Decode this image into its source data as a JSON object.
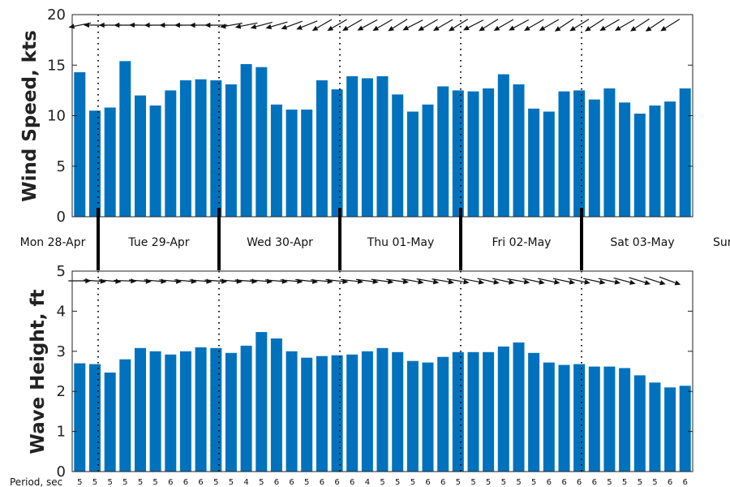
{
  "chart_data": [
    {
      "type": "bar",
      "ylabel": "Wind Speed, kts",
      "ylim": [
        0,
        20
      ],
      "yticks": [
        0,
        5,
        10,
        15,
        20
      ],
      "color": "#0072bd",
      "values": [
        14.3,
        10.5,
        10.8,
        15.4,
        12.0,
        11.0,
        12.5,
        13.5,
        13.6,
        13.5,
        13.1,
        15.1,
        14.8,
        11.1,
        10.6,
        10.6,
        13.5,
        12.6,
        13.9,
        13.7,
        13.9,
        12.1,
        10.4,
        11.1,
        12.9,
        12.5,
        12.4,
        12.7,
        14.1,
        13.1,
        10.7,
        10.4,
        12.4,
        12.5,
        11.6,
        12.7,
        11.3,
        10.2,
        11.0,
        11.4,
        12.7
      ],
      "direction_arrows": [
        169,
        181,
        180,
        180,
        181,
        180,
        180,
        180,
        180,
        180,
        170,
        169,
        165,
        164,
        160,
        158,
        150,
        150,
        150,
        152,
        150,
        148,
        153,
        150,
        150,
        148,
        153,
        148,
        150,
        152,
        150,
        150,
        146,
        148,
        147,
        150,
        150,
        147,
        146,
        148,
        147
      ]
    },
    {
      "type": "bar",
      "ylabel": "Wave Height, ft",
      "ylim": [
        0,
        5
      ],
      "yticks": [
        0,
        1,
        2,
        3,
        4,
        5
      ],
      "color": "#0072bd",
      "values": [
        2.7,
        2.68,
        2.47,
        2.8,
        3.08,
        3.0,
        2.92,
        3.0,
        3.1,
        3.08,
        2.96,
        3.14,
        3.48,
        3.32,
        3.0,
        2.84,
        2.88,
        2.9,
        2.92,
        3.0,
        3.08,
        2.98,
        2.76,
        2.72,
        2.86,
        2.98,
        2.98,
        2.98,
        3.12,
        3.22,
        2.96,
        2.72,
        2.66,
        2.68,
        2.62,
        2.62,
        2.58,
        2.4,
        2.22,
        2.1,
        2.14
      ],
      "direction_arrows": [
        0,
        4,
        5,
        2,
        4,
        5,
        5,
        5,
        5,
        4,
        5,
        4,
        5,
        5,
        5,
        6,
        5,
        6,
        6,
        7,
        8,
        8,
        10,
        10,
        10,
        10,
        11,
        12,
        12,
        10,
        12,
        12,
        12,
        12,
        12,
        12,
        15,
        17,
        18,
        20,
        20
      ]
    }
  ],
  "day_labels": [
    "Mon 28-Apr",
    "Tue 29-Apr",
    "Wed 30-Apr",
    "Thu 01-May",
    "Fri 02-May",
    "Sat 03-May",
    "Sun"
  ],
  "period_label": "Period, sec",
  "periods": [
    "5",
    "5",
    "5",
    "5",
    "5",
    "5",
    "6",
    "6",
    "6",
    "5",
    "5",
    "4",
    "5",
    "6",
    "6",
    "5",
    "6",
    "6",
    "6",
    "4",
    "5",
    "5",
    "5",
    "6",
    "6",
    "5",
    "5",
    "5",
    "5",
    "5",
    "5",
    "6",
    "6",
    "6",
    "6",
    "5",
    "5",
    "5",
    "5",
    "6",
    "6"
  ]
}
